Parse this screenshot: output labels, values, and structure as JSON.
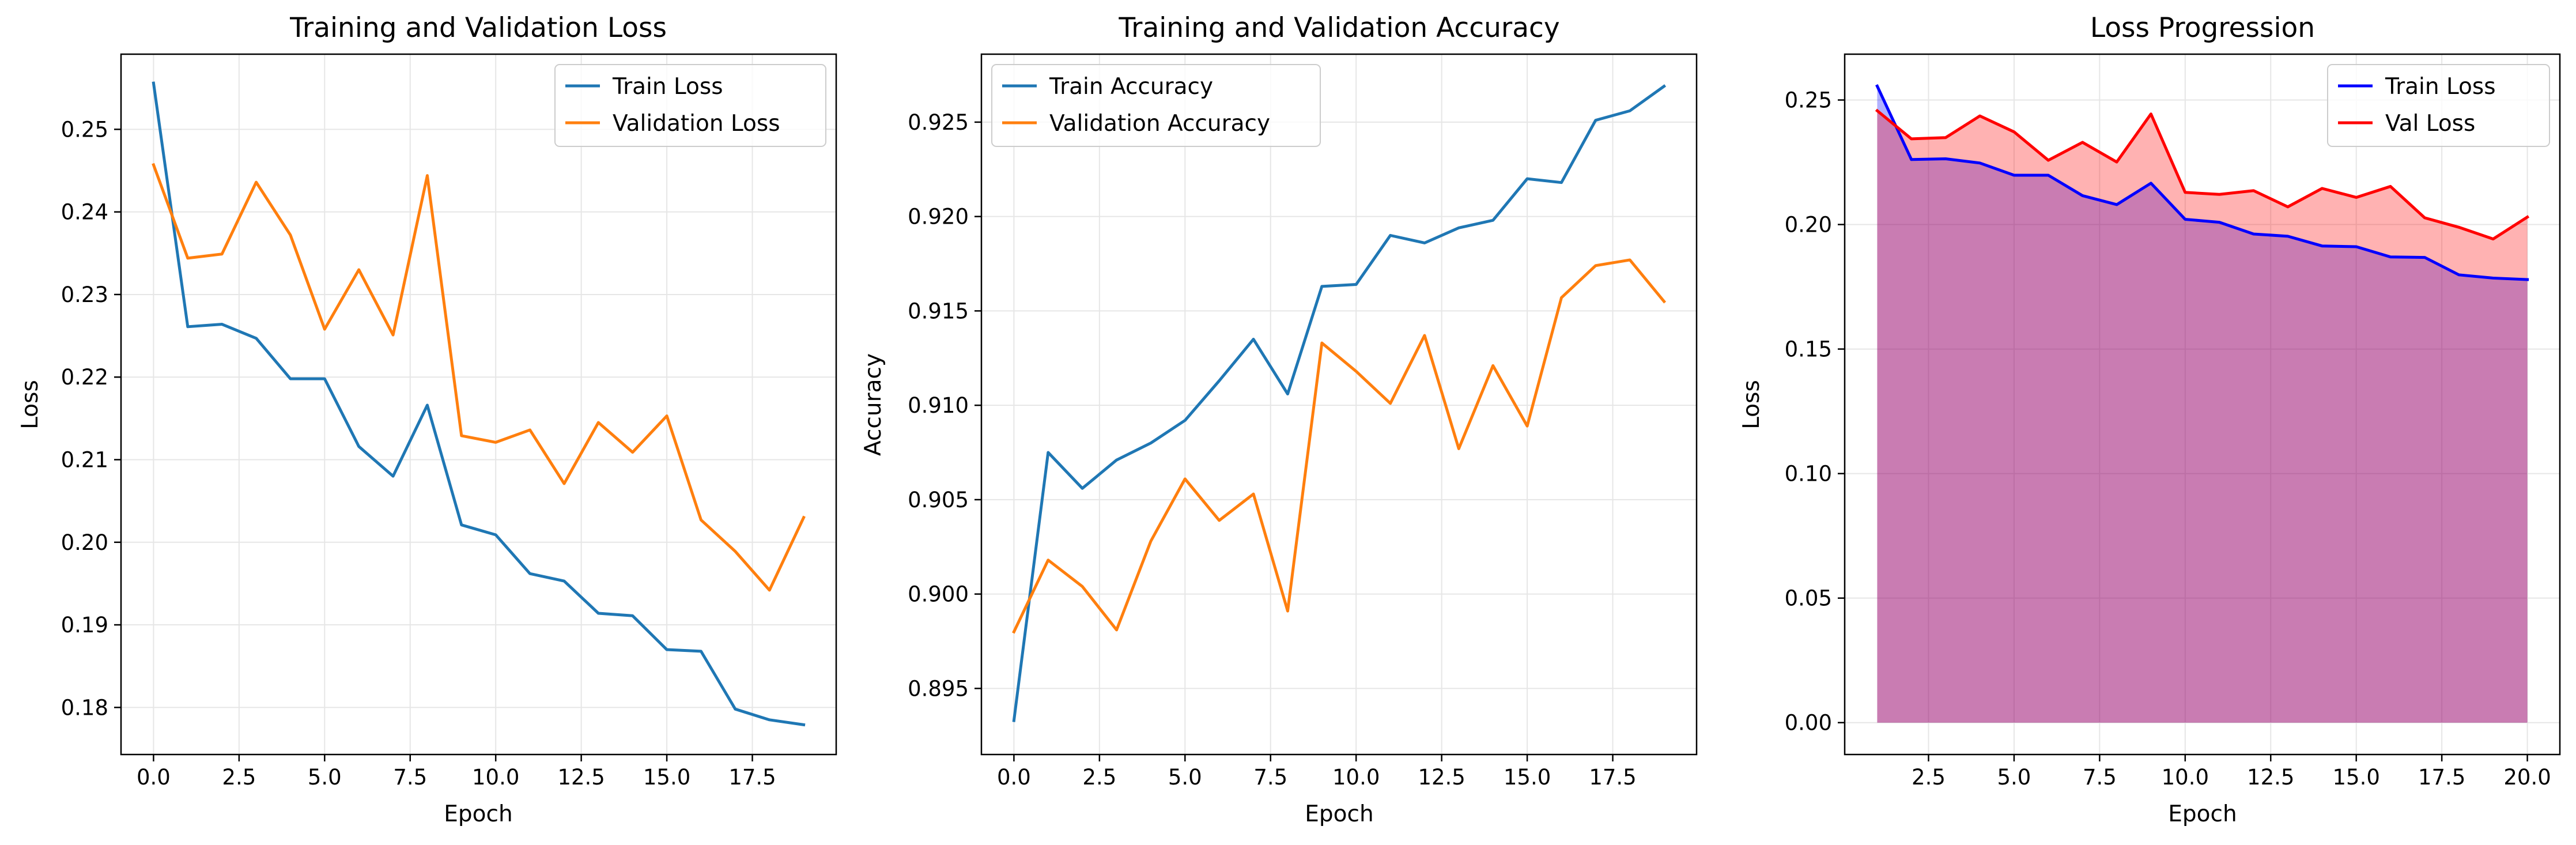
{
  "chart_data": [
    {
      "type": "line",
      "title": "Training and Validation Loss",
      "xlabel": "Epoch",
      "ylabel": "Loss",
      "xlim": [
        -0.95,
        19.95
      ],
      "ylim": [
        0.1743,
        0.2591
      ],
      "xticks": [
        0.0,
        2.5,
        5.0,
        7.5,
        10.0,
        12.5,
        15.0,
        17.5
      ],
      "xtick_labels": [
        "0.0",
        "2.5",
        "5.0",
        "7.5",
        "10.0",
        "12.5",
        "15.0",
        "17.5"
      ],
      "yticks": [
        0.18,
        0.19,
        0.2,
        0.21,
        0.22,
        0.23,
        0.24,
        0.25
      ],
      "ytick_labels": [
        "0.18",
        "0.19",
        "0.20",
        "0.21",
        "0.22",
        "0.23",
        "0.24",
        "0.25"
      ],
      "grid": true,
      "legend_position": "top-right",
      "x": [
        0,
        1,
        2,
        3,
        4,
        5,
        6,
        7,
        8,
        9,
        10,
        11,
        12,
        13,
        14,
        15,
        16,
        17,
        18,
        19
      ],
      "series": [
        {
          "name": "Train Loss",
          "color": "#1f77b4",
          "values": [
            0.2556,
            0.2261,
            0.2264,
            0.2247,
            0.2198,
            0.2198,
            0.2116,
            0.208,
            0.2166,
            0.2021,
            0.2009,
            0.1962,
            0.1953,
            0.1914,
            0.1911,
            0.187,
            0.1868,
            0.1798,
            0.1785,
            0.1779
          ]
        },
        {
          "name": "Validation Loss",
          "color": "#ff7f0e",
          "values": [
            0.2457,
            0.2344,
            0.2349,
            0.2436,
            0.2372,
            0.2258,
            0.233,
            0.2251,
            0.2444,
            0.2129,
            0.2121,
            0.2136,
            0.2071,
            0.2145,
            0.2109,
            0.2153,
            0.2027,
            0.1989,
            0.1942,
            0.203
          ]
        }
      ]
    },
    {
      "type": "line",
      "title": "Training and Validation Accuracy",
      "xlabel": "Epoch",
      "ylabel": "Accuracy",
      "xlim": [
        -0.95,
        19.95
      ],
      "ylim": [
        0.8915,
        0.9286
      ],
      "xticks": [
        0.0,
        2.5,
        5.0,
        7.5,
        10.0,
        12.5,
        15.0,
        17.5
      ],
      "xtick_labels": [
        "0.0",
        "2.5",
        "5.0",
        "7.5",
        "10.0",
        "12.5",
        "15.0",
        "17.5"
      ],
      "yticks": [
        0.895,
        0.9,
        0.905,
        0.91,
        0.915,
        0.92,
        0.925
      ],
      "ytick_labels": [
        "0.895",
        "0.900",
        "0.905",
        "0.910",
        "0.915",
        "0.920",
        "0.925"
      ],
      "grid": true,
      "legend_position": "top-left",
      "x": [
        0,
        1,
        2,
        3,
        4,
        5,
        6,
        7,
        8,
        9,
        10,
        11,
        12,
        13,
        14,
        15,
        16,
        17,
        18,
        19
      ],
      "series": [
        {
          "name": "Train Accuracy",
          "color": "#1f77b4",
          "values": [
            0.8933,
            0.9075,
            0.9056,
            0.9071,
            0.908,
            0.9092,
            0.9113,
            0.9135,
            0.9106,
            0.9163,
            0.9164,
            0.919,
            0.9186,
            0.9194,
            0.9198,
            0.922,
            0.9218,
            0.9251,
            0.9256,
            0.9269
          ]
        },
        {
          "name": "Validation Accuracy",
          "color": "#ff7f0e",
          "values": [
            0.898,
            0.9018,
            0.9004,
            0.8981,
            0.9028,
            0.9061,
            0.9039,
            0.9053,
            0.8991,
            0.9133,
            0.9118,
            0.9101,
            0.9137,
            0.9077,
            0.9121,
            0.9089,
            0.9157,
            0.9174,
            0.9177,
            0.9155
          ]
        }
      ]
    },
    {
      "type": "area",
      "title": "Loss Progression",
      "xlabel": "Epoch",
      "ylabel": "Loss",
      "xlim": [
        0.05,
        20.95
      ],
      "ylim": [
        -0.0128,
        0.2684
      ],
      "xticks": [
        2.5,
        5.0,
        7.5,
        10.0,
        12.5,
        15.0,
        17.5,
        20.0
      ],
      "xtick_labels": [
        "2.5",
        "5.0",
        "7.5",
        "10.0",
        "12.5",
        "15.0",
        "17.5",
        "20.0"
      ],
      "yticks": [
        0.0,
        0.05,
        0.1,
        0.15,
        0.2,
        0.25
      ],
      "ytick_labels": [
        "0.00",
        "0.05",
        "0.10",
        "0.15",
        "0.20",
        "0.25"
      ],
      "grid": true,
      "legend_position": "top-right",
      "x": [
        1,
        2,
        3,
        4,
        5,
        6,
        7,
        8,
        9,
        10,
        11,
        12,
        13,
        14,
        15,
        16,
        17,
        18,
        19,
        20
      ],
      "series": [
        {
          "name": "Train Loss",
          "color": "#0000ff",
          "fill": "#0000ff",
          "values": [
            0.2556,
            0.2261,
            0.2264,
            0.2247,
            0.2198,
            0.2198,
            0.2116,
            0.208,
            0.2166,
            0.2021,
            0.2009,
            0.1962,
            0.1953,
            0.1914,
            0.1911,
            0.187,
            0.1868,
            0.1798,
            0.1785,
            0.1779
          ]
        },
        {
          "name": "Val Loss",
          "color": "#ff0000",
          "fill": "#ff0000",
          "values": [
            0.2457,
            0.2344,
            0.2349,
            0.2436,
            0.2372,
            0.2258,
            0.233,
            0.2251,
            0.2444,
            0.2129,
            0.2121,
            0.2136,
            0.2071,
            0.2145,
            0.2109,
            0.2153,
            0.2027,
            0.1989,
            0.1942,
            0.203
          ]
        }
      ]
    }
  ]
}
